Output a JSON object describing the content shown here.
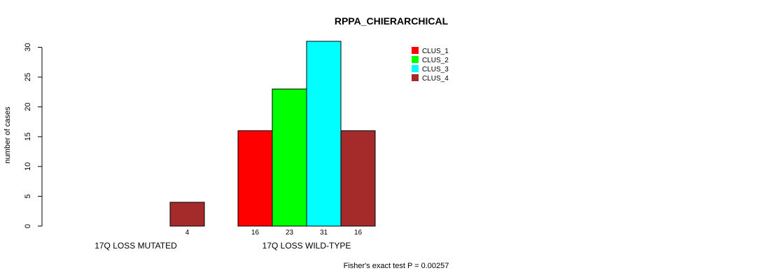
{
  "chart_data": {
    "type": "bar",
    "title": "RPPA_CHIERARCHICAL",
    "ylabel": "number of cases",
    "xlabel": "",
    "ylim": [
      0,
      31
    ],
    "yticks": [
      0,
      5,
      10,
      15,
      20,
      25,
      30
    ],
    "categories": [
      "17Q LOSS MUTATED",
      "17Q LOSS WILD-TYPE"
    ],
    "series": [
      {
        "name": "CLUS_1",
        "color": "#ff0000",
        "values": [
          0,
          16
        ]
      },
      {
        "name": "CLUS_2",
        "color": "#00ff00",
        "values": [
          0,
          23
        ]
      },
      {
        "name": "CLUS_3",
        "color": "#00ffff",
        "values": [
          0,
          31
        ]
      },
      {
        "name": "CLUS_4",
        "color": "#a52a2a",
        "values": [
          4,
          16
        ]
      }
    ],
    "bar_value_labels": [
      [
        "",
        "",
        "",
        "4"
      ],
      [
        "16",
        "23",
        "31",
        "16"
      ]
    ],
    "legend_position": "top-right",
    "footnote": "Fisher's exact test P = 0.00257"
  }
}
